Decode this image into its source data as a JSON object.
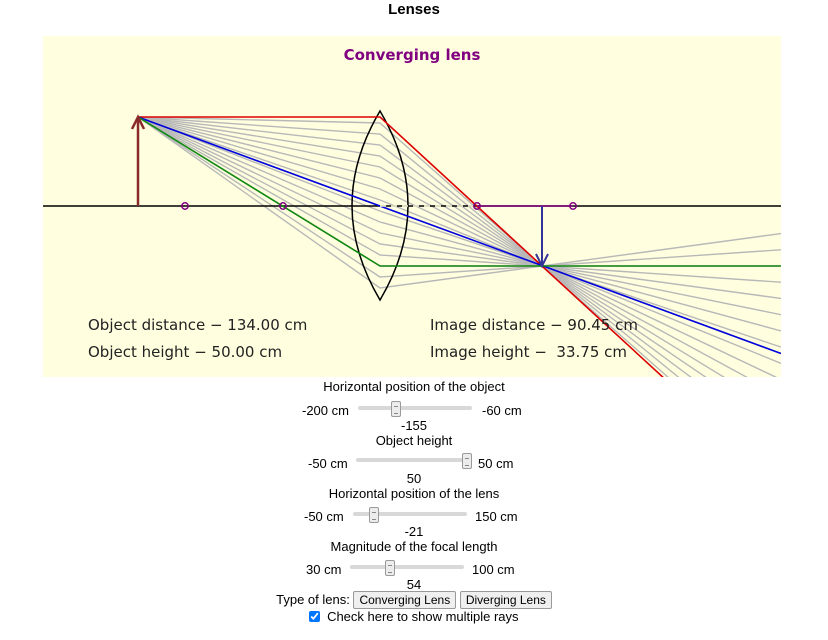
{
  "page": {
    "title": "Lenses"
  },
  "sim": {
    "title": "Converging lens",
    "object_distance": "Object distance − 134.00 cm",
    "object_height": "Object height − 50.00 cm",
    "image_distance": "Image distance − 90.45 cm",
    "image_height": "Image height −  33.75 cm",
    "colors": {
      "object": "#8b2a2a",
      "image": "#333399",
      "ray_parallel": "#dd0000",
      "ray_center": "#0000dd",
      "ray_focal": "#118811",
      "ray_extra": "#b8b8b8",
      "focal_point": "#800080"
    }
  },
  "controls": [
    {
      "id": "object-position",
      "label": "Horizontal position of the object",
      "min_label": "-200 cm",
      "max_label": "-60 cm",
      "value": "-155",
      "fraction": 0.32
    },
    {
      "id": "object-height",
      "label": "Object height",
      "min_label": "-50 cm",
      "max_label": "50 cm",
      "value": "50",
      "fraction": 1.0
    },
    {
      "id": "lens-position",
      "label": "Horizontal position of the lens",
      "min_label": "-50 cm",
      "max_label": "150 cm",
      "value": "-21",
      "fraction": 0.15
    },
    {
      "id": "focal-length",
      "label": "Magnitude of the focal length",
      "min_label": "30 cm",
      "max_label": "100 cm",
      "value": "54",
      "fraction": 0.34
    }
  ],
  "lens_type": {
    "label": "Type of lens:",
    "converging": "Converging Lens",
    "diverging": "Diverging Lens"
  },
  "multiple_rays": {
    "checked": true,
    "label": "Check here to show multiple rays"
  }
}
